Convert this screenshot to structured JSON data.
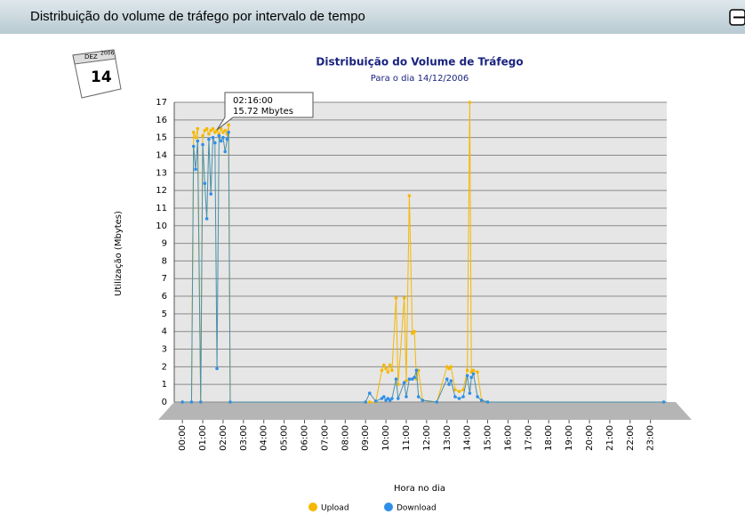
{
  "header": {
    "title": "Distribuição do volume de tráfego por intervalo de tempo"
  },
  "calendar": {
    "month": "DEZ",
    "year": "2006",
    "day": "14"
  },
  "chart_data": {
    "type": "line",
    "title": "Distribuição do Volume de Tráfego",
    "subtitle": "Para o dia 14/12/2006",
    "x_label": "Hora no dia",
    "y_label": "Utilização (Mbytes)",
    "annotations": [
      "02:16:00",
      "15.72 Mbytes"
    ],
    "x": [
      0,
      0.45,
      0.55,
      0.65,
      0.75,
      0.9,
      1.0,
      1.1,
      1.2,
      1.3,
      1.4,
      1.5,
      1.6,
      1.7,
      1.8,
      1.9,
      2.0,
      2.1,
      2.2,
      2.27,
      2.35,
      9.0,
      9.2,
      9.5,
      9.8,
      9.9,
      10.0,
      10.1,
      10.2,
      10.3,
      10.5,
      10.6,
      10.9,
      11.0,
      11.15,
      11.3,
      11.4,
      11.5,
      11.6,
      11.8,
      12.5,
      13.0,
      13.1,
      13.2,
      13.4,
      13.6,
      13.8,
      14.0,
      14.12,
      14.2,
      14.3,
      14.5,
      14.7,
      15.0,
      23.65
    ],
    "series": [
      {
        "name": "Upload",
        "color": "#f5b800",
        "values": [
          0,
          0,
          15.3,
          15.0,
          15.5,
          0,
          15.1,
          15.4,
          15.5,
          15.2,
          15.4,
          15.5,
          15.3,
          15.4,
          15.2,
          15.5,
          15.3,
          15.4,
          15.2,
          15.72,
          0,
          0,
          0,
          0,
          1.8,
          2.1,
          1.9,
          1.7,
          2.1,
          1.8,
          5.9,
          1.0,
          5.9,
          1.2,
          11.7,
          3.9,
          4.0,
          1.3,
          1.8,
          0.1,
          0,
          2.0,
          1.9,
          2.0,
          0.7,
          0.6,
          0.7,
          1.8,
          17.0,
          1.7,
          1.8,
          1.7,
          0.1,
          0,
          0
        ]
      },
      {
        "name": "Download",
        "color": "#2f8fe8",
        "values": [
          0,
          0,
          14.5,
          13.2,
          14.8,
          0,
          14.6,
          12.4,
          10.4,
          14.9,
          11.8,
          15.0,
          14.7,
          1.9,
          15.1,
          14.8,
          15.0,
          14.2,
          14.9,
          15.3,
          0,
          0,
          0.5,
          0.05,
          0.2,
          0.3,
          0.1,
          0.2,
          0.1,
          0.2,
          1.3,
          0.2,
          1.1,
          0.3,
          1.3,
          1.3,
          1.4,
          1.8,
          0.3,
          0.1,
          0,
          1.3,
          1.0,
          1.2,
          0.3,
          0.2,
          0.3,
          1.5,
          0.5,
          1.4,
          1.6,
          0.3,
          0.1,
          0,
          0
        ]
      }
    ],
    "xlim": [
      -0.4,
      23.8
    ],
    "xticks": [
      {
        "value": 0,
        "label": "00:00"
      },
      {
        "value": 1,
        "label": "01:00"
      },
      {
        "value": 2,
        "label": "02:00"
      },
      {
        "value": 3,
        "label": "03:00"
      },
      {
        "value": 4,
        "label": "04:00"
      },
      {
        "value": 5,
        "label": "05:00"
      },
      {
        "value": 6,
        "label": "06:00"
      },
      {
        "value": 7,
        "label": "07:00"
      },
      {
        "value": 8,
        "label": "08:00"
      },
      {
        "value": 9,
        "label": "09:00"
      },
      {
        "value": 10,
        "label": "10:00"
      },
      {
        "value": 11,
        "label": "11:00"
      },
      {
        "value": 12,
        "label": "12:00"
      },
      {
        "value": 13,
        "label": "13:00"
      },
      {
        "value": 14,
        "label": "14:00"
      },
      {
        "value": 15,
        "label": "15:00"
      },
      {
        "value": 16,
        "label": "16:00"
      },
      {
        "value": 17,
        "label": "17:00"
      },
      {
        "value": 18,
        "label": "18:00"
      },
      {
        "value": 19,
        "label": "19:00"
      },
      {
        "value": 20,
        "label": "20:00"
      },
      {
        "value": 21,
        "label": "21:00"
      },
      {
        "value": 22,
        "label": "22:00"
      },
      {
        "value": 23,
        "label": "23:00"
      }
    ],
    "ylim": [
      0,
      17
    ],
    "yticks": [
      0,
      1,
      2,
      3,
      4,
      5,
      6,
      7,
      8,
      9,
      10,
      11,
      12,
      13,
      14,
      15,
      16,
      17
    ],
    "grid": true
  }
}
